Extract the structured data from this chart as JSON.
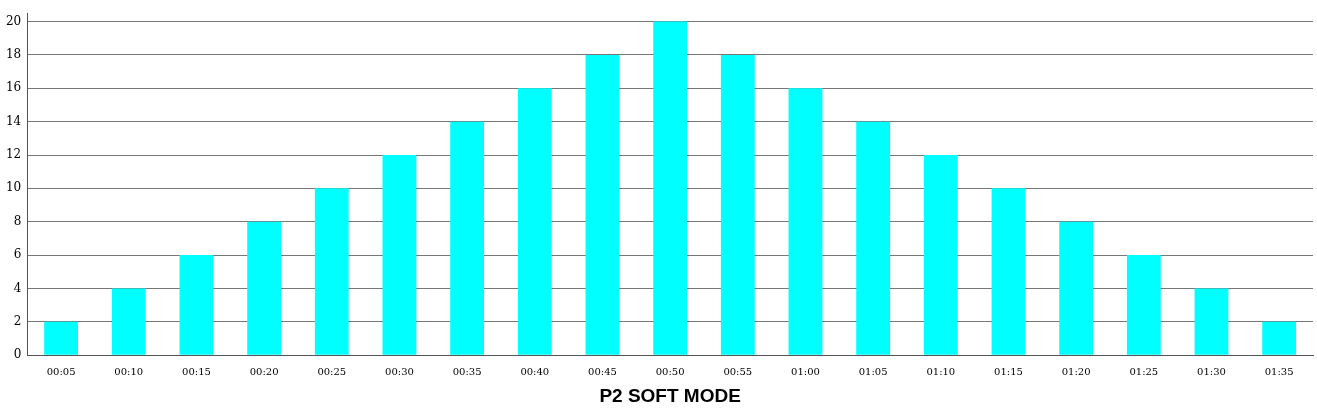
{
  "chart_data": {
    "type": "bar",
    "xlabel": "P2 SOFT MODE",
    "categories": [
      "00:05",
      "00:10",
      "00:15",
      "00:20",
      "00:25",
      "00:30",
      "00:35",
      "00:40",
      "00:45",
      "00:50",
      "00:55",
      "01:00",
      "01:05",
      "01:10",
      "01:15",
      "01:20",
      "01:25",
      "01:30",
      "01:35"
    ],
    "values": [
      2,
      4,
      6,
      8,
      10,
      12,
      14,
      16,
      18,
      20,
      18,
      16,
      14,
      12,
      10,
      8,
      6,
      4,
      2
    ],
    "color": "#00ffff",
    "ylim": [
      0,
      20.5
    ],
    "yticks": [
      0,
      2,
      4,
      6,
      8,
      10,
      12,
      14,
      16,
      18,
      20
    ],
    "grid": "y",
    "legend": false
  }
}
